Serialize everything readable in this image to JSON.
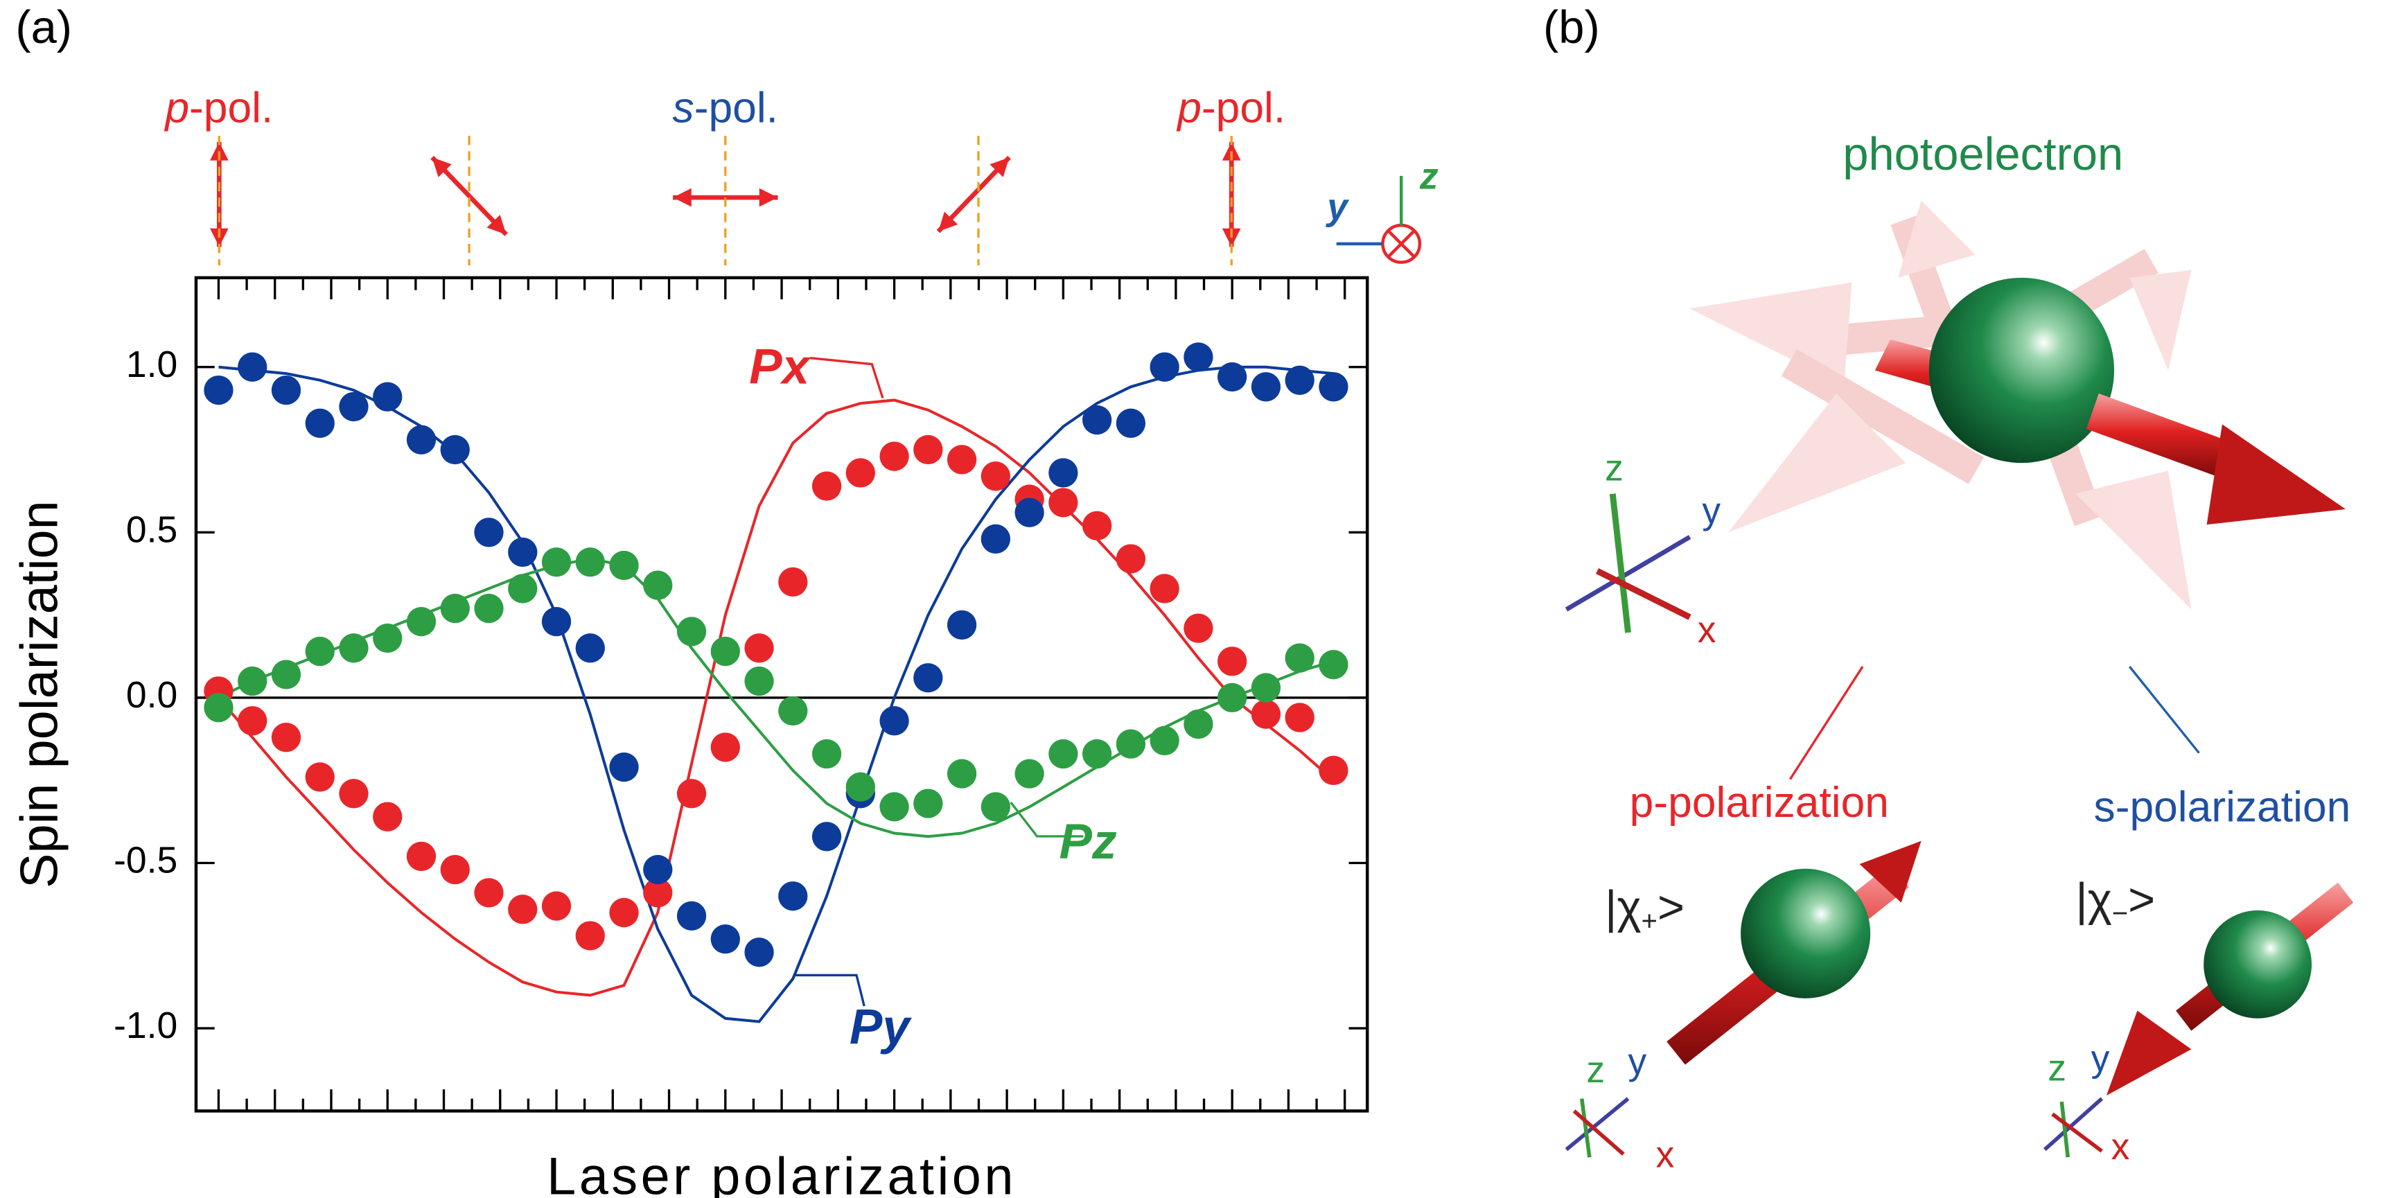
{
  "chart_data": {
    "type": "scatter",
    "y_label": "Spin polarization",
    "x_label": "Laser polarization",
    "x": [
      0,
      6,
      12,
      18,
      24,
      30,
      36,
      42,
      48,
      54,
      60,
      66,
      72,
      78,
      84,
      90,
      96,
      102,
      108,
      114,
      120,
      126,
      132,
      138,
      144,
      150,
      156,
      162,
      168,
      174,
      180,
      186,
      192,
      198
    ],
    "xlim": [
      -4,
      204
    ],
    "xticks": [
      0,
      5,
      10,
      15,
      20,
      25,
      30,
      35,
      40,
      45,
      50,
      55,
      60,
      65,
      70,
      75,
      80,
      85,
      90,
      95,
      100,
      105,
      110,
      115,
      120,
      125,
      130,
      135,
      140,
      145,
      150,
      155,
      160,
      165,
      170,
      175,
      180,
      185,
      190,
      195,
      200
    ],
    "ylim": [
      -1.25,
      1.27
    ],
    "yticks": [
      {
        "value": -1,
        "label": "-1.0"
      },
      {
        "value": -0.5,
        "label": "-0.5"
      },
      {
        "value": 0,
        "label": "0.0"
      },
      {
        "value": 0.5,
        "label": "0.5"
      },
      {
        "value": 1,
        "label": "1.0"
      }
    ],
    "series": [
      {
        "name": "Px",
        "color": "#e8262a",
        "values": [
          0.02,
          -0.07,
          -0.12,
          -0.24,
          -0.29,
          -0.36,
          -0.48,
          -0.52,
          -0.59,
          -0.64,
          -0.63,
          -0.72,
          -0.65,
          -0.59,
          -0.29,
          -0.15,
          0.15,
          0.35,
          0.64,
          0.68,
          0.73,
          0.75,
          0.72,
          0.67,
          0.6,
          0.59,
          0.52,
          0.42,
          0.33,
          0.21,
          0.11,
          -0.05,
          -0.06,
          -0.22
        ],
        "fit": [
          0,
          -0.12,
          -0.24,
          -0.35,
          -0.46,
          -0.56,
          -0.65,
          -0.73,
          -0.8,
          -0.86,
          -0.89,
          -0.9,
          -0.87,
          -0.65,
          -0.2,
          0.25,
          0.58,
          0.77,
          0.86,
          0.89,
          0.9,
          0.87,
          0.82,
          0.76,
          0.68,
          0.58,
          0.48,
          0.37,
          0.25,
          0.12,
          0,
          -0.08,
          -0.16,
          -0.25
        ]
      },
      {
        "name": "Py",
        "color": "#0d3b9a",
        "values": [
          0.93,
          1,
          0.93,
          0.83,
          0.88,
          0.91,
          0.78,
          0.75,
          0.5,
          0.44,
          0.23,
          0.15,
          -0.21,
          -0.52,
          -0.66,
          -0.73,
          -0.77,
          -0.6,
          -0.42,
          -0.29,
          -0.07,
          0.06,
          0.22,
          0.48,
          0.56,
          0.68,
          0.84,
          0.83,
          1,
          1.03,
          0.97,
          0.94,
          0.96,
          0.94
        ],
        "fit": [
          1,
          0.99,
          0.98,
          0.96,
          0.93,
          0.88,
          0.82,
          0.74,
          0.62,
          0.47,
          0.25,
          -0.05,
          -0.4,
          -0.7,
          -0.9,
          -0.97,
          -0.98,
          -0.85,
          -0.6,
          -0.3,
          0,
          0.25,
          0.45,
          0.6,
          0.72,
          0.82,
          0.89,
          0.94,
          0.97,
          0.99,
          1,
          1,
          0.99,
          0.98
        ]
      },
      {
        "name": "Pz",
        "color": "#2e9e44",
        "values": [
          -0.03,
          0.05,
          0.07,
          0.14,
          0.15,
          0.18,
          0.23,
          0.27,
          0.27,
          0.33,
          0.41,
          0.41,
          0.4,
          0.34,
          0.2,
          0.14,
          0.05,
          -0.04,
          -0.17,
          -0.27,
          -0.33,
          -0.32,
          -0.23,
          -0.33,
          -0.23,
          -0.17,
          -0.17,
          -0.14,
          -0.13,
          -0.08,
          0,
          0.03,
          0.12,
          0.1
        ],
        "fit": [
          0,
          0.05,
          0.09,
          0.13,
          0.17,
          0.21,
          0.25,
          0.29,
          0.33,
          0.37,
          0.4,
          0.42,
          0.4,
          0.3,
          0.15,
          0.02,
          -0.1,
          -0.22,
          -0.32,
          -0.38,
          -0.41,
          -0.42,
          -0.41,
          -0.38,
          -0.33,
          -0.27,
          -0.21,
          -0.15,
          -0.09,
          -0.04,
          0,
          0.04,
          0.08,
          0.11
        ]
      }
    ]
  },
  "panel_labels": [
    "(a)",
    "(b)"
  ],
  "polarization_labels": [
    {
      "italic": "p",
      "text": "-pol."
    },
    {
      "italic": "s",
      "text": "-pol."
    },
    {
      "italic": "p",
      "text": "-pol."
    }
  ],
  "frame_axes": {
    "y": "y",
    "z": "z"
  },
  "diagram": {
    "title": "photoelectron",
    "p_label": "p-polarization",
    "s_label": "s-polarization",
    "ket_plus": {
      "open": "|χ",
      "sub": "+",
      "close": ">"
    },
    "ket_minus": {
      "open": "|χ",
      "sub": "−",
      "close": ">"
    },
    "axes": [
      {
        "x": "x",
        "y": "y",
        "z": "z"
      },
      {
        "x": "x",
        "y": "y",
        "z": "z"
      },
      {
        "x": "x",
        "y": "y",
        "z": "z"
      }
    ]
  }
}
